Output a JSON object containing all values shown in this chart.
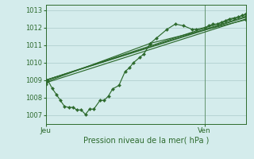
{
  "background_color": "#d4ecec",
  "grid_color": "#b2d0d0",
  "line_color": "#2d6a2d",
  "title": "Pression niveau de la mer( hPa )",
  "xlabel_jeu": "Jeu",
  "xlabel_ven": "Ven",
  "ylim": [
    1006.5,
    1013.3
  ],
  "yticks": [
    1007,
    1008,
    1009,
    1010,
    1011,
    1012,
    1013
  ],
  "xlim": [
    0,
    48
  ],
  "x_jeu": 0,
  "x_ven": 38,
  "series_main": [
    [
      0,
      1008.75
    ],
    [
      0.5,
      1009.0
    ],
    [
      1.5,
      1008.55
    ],
    [
      2.5,
      1008.2
    ],
    [
      3.5,
      1007.85
    ],
    [
      4.5,
      1007.5
    ],
    [
      5.5,
      1007.45
    ],
    [
      6.5,
      1007.45
    ],
    [
      7.5,
      1007.3
    ],
    [
      8.5,
      1007.3
    ],
    [
      9.5,
      1007.05
    ],
    [
      10.5,
      1007.35
    ],
    [
      11.5,
      1007.35
    ],
    [
      13,
      1007.85
    ],
    [
      14,
      1007.85
    ],
    [
      15,
      1008.1
    ],
    [
      16,
      1008.5
    ],
    [
      17.5,
      1008.7
    ],
    [
      19,
      1009.5
    ],
    [
      20,
      1009.7
    ],
    [
      21,
      1010.0
    ],
    [
      22.5,
      1010.3
    ],
    [
      23.5,
      1010.5
    ],
    [
      25,
      1011.1
    ],
    [
      26.5,
      1011.4
    ],
    [
      29,
      1011.9
    ],
    [
      31,
      1012.2
    ],
    [
      33,
      1012.1
    ],
    [
      35,
      1011.9
    ],
    [
      36,
      1011.9
    ],
    [
      38,
      1012.0
    ],
    [
      39,
      1012.1
    ],
    [
      40,
      1012.2
    ],
    [
      41,
      1012.2
    ],
    [
      42,
      1012.3
    ],
    [
      43,
      1012.4
    ],
    [
      44,
      1012.5
    ],
    [
      45,
      1012.55
    ],
    [
      46,
      1012.6
    ],
    [
      47,
      1012.7
    ],
    [
      48,
      1012.8
    ]
  ],
  "series_straight": [
    [
      [
        0,
        1009.0
      ],
      [
        48,
        1012.65
      ]
    ],
    [
      [
        0,
        1009.0
      ],
      [
        48,
        1012.75
      ]
    ],
    [
      [
        0,
        1009.0
      ],
      [
        48,
        1012.6
      ]
    ],
    [
      [
        0,
        1008.85
      ],
      [
        48,
        1012.5
      ]
    ],
    [
      [
        0,
        1008.9
      ],
      [
        25,
        1011.1
      ],
      [
        48,
        1012.45
      ]
    ]
  ]
}
